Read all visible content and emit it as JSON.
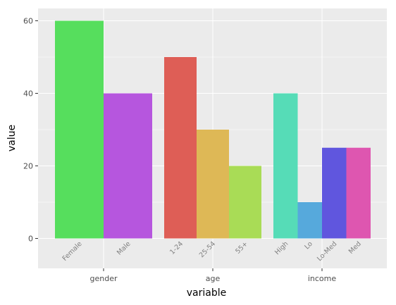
{
  "chart_data": {
    "type": "bar",
    "xlabel": "variable",
    "ylabel": "value",
    "ylim": [
      0,
      60
    ],
    "yticks": [
      0,
      20,
      40,
      60
    ],
    "grid": true,
    "legend": "none",
    "panel_background": "#ebebeb",
    "grid_color": "#ffffff",
    "groups": [
      {
        "name": "gender",
        "bars": [
          {
            "label": "Female",
            "value": 60,
            "color": "#56de5d"
          },
          {
            "label": "Male",
            "value": 40,
            "color": "#b656de"
          }
        ]
      },
      {
        "name": "age",
        "bars": [
          {
            "label": "1-24",
            "value": 50,
            "color": "#de5e56"
          },
          {
            "label": "25-54",
            "value": 30,
            "color": "#deb856"
          },
          {
            "label": "55+",
            "value": 20,
            "color": "#a9dc56"
          }
        ]
      },
      {
        "name": "income",
        "bars": [
          {
            "label": "High",
            "value": 40,
            "color": "#56dcb7"
          },
          {
            "label": "Lo",
            "value": 10,
            "color": "#56a9dc"
          },
          {
            "label": "Lo-Med",
            "value": 25,
            "color": "#6056de"
          },
          {
            "label": "Med",
            "value": 25,
            "color": "#de56b0"
          }
        ]
      }
    ]
  }
}
